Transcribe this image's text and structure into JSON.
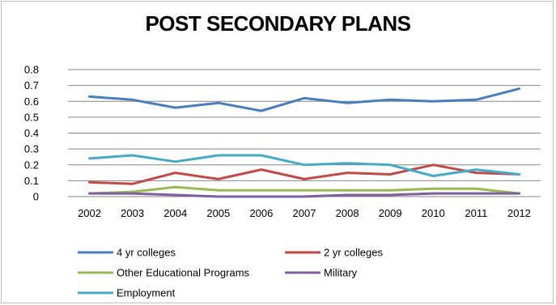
{
  "chart_data": {
    "type": "line",
    "title": "POST SECONDARY PLANS",
    "xlabel": "",
    "ylabel": "",
    "x": [
      "2002",
      "2003",
      "2004",
      "2005",
      "2006",
      "2007",
      "2008",
      "2009",
      "2010",
      "2011",
      "2012"
    ],
    "ylim": [
      0,
      0.8
    ],
    "yticks": [
      "0",
      "0.1",
      "0.2",
      "0.3",
      "0.4",
      "0.5",
      "0.6",
      "0.7",
      "0.8"
    ],
    "grid": true,
    "legend_position": "bottom",
    "series": [
      {
        "name": "4 yr colleges",
        "color": "#4a7ebb",
        "values": [
          0.63,
          0.61,
          0.56,
          0.59,
          0.54,
          0.62,
          0.59,
          0.61,
          0.6,
          0.61,
          0.68
        ]
      },
      {
        "name": "2 yr colleges",
        "color": "#be4b48",
        "values": [
          0.09,
          0.08,
          0.15,
          0.11,
          0.17,
          0.11,
          0.15,
          0.14,
          0.2,
          0.15,
          0.14
        ]
      },
      {
        "name": "Other Educational Programs",
        "color": "#98b954",
        "values": [
          0.02,
          0.03,
          0.06,
          0.04,
          0.04,
          0.04,
          0.04,
          0.04,
          0.05,
          0.05,
          0.02
        ]
      },
      {
        "name": "Military",
        "color": "#7d5fa0",
        "values": [
          0.02,
          0.02,
          0.01,
          0.0,
          0.0,
          0.0,
          0.01,
          0.01,
          0.02,
          0.02,
          0.02
        ]
      },
      {
        "name": "Employment",
        "color": "#46aac5",
        "values": [
          0.24,
          0.26,
          0.22,
          0.26,
          0.26,
          0.2,
          0.21,
          0.2,
          0.13,
          0.17,
          0.14
        ]
      }
    ]
  }
}
